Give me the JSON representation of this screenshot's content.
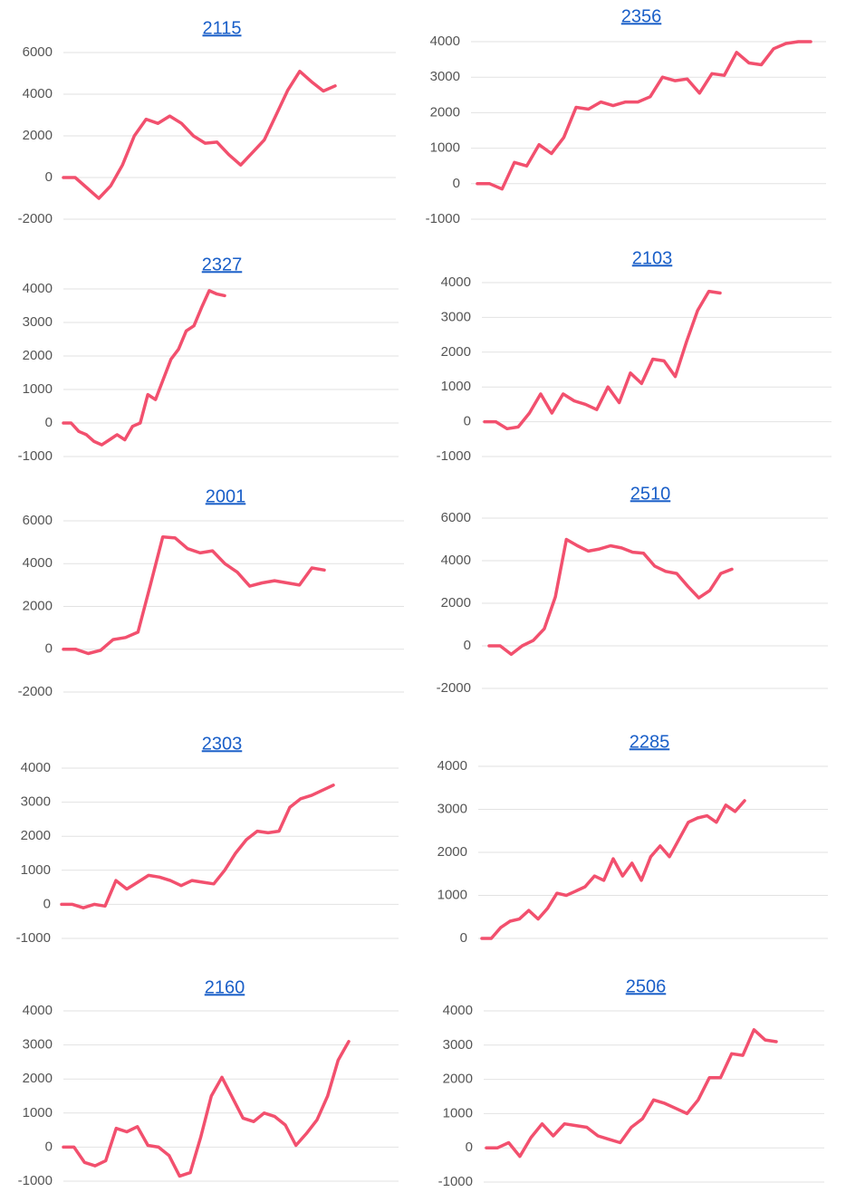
{
  "chart_data": [
    {
      "type": "line",
      "title": "2115",
      "color": "#f2506e",
      "grid": true,
      "ylim": [
        -2000,
        6000
      ],
      "yticks": [
        -2000,
        0,
        2000,
        4000,
        6000
      ],
      "values": [
        0,
        0,
        -500,
        -1000,
        -400,
        600,
        2000,
        2800,
        2600,
        2950,
        2600,
        2000,
        1650,
        1700,
        1100,
        600,
        1200,
        1800,
        3000,
        4200,
        5100,
        4600,
        4150,
        4400
      ]
    },
    {
      "type": "line",
      "title": "2356",
      "color": "#f2506e",
      "grid": true,
      "ylim": [
        -1000,
        4000
      ],
      "yticks": [
        -1000,
        0,
        1000,
        2000,
        3000,
        4000
      ],
      "values": [
        0,
        0,
        -150,
        600,
        500,
        1100,
        850,
        1300,
        2150,
        2100,
        2300,
        2200,
        2300,
        2300,
        2450,
        3000,
        2900,
        2950,
        2550,
        3100,
        3050,
        3700,
        3400,
        3350,
        3800,
        3950,
        4000,
        4000
      ]
    },
    {
      "type": "line",
      "title": "2327",
      "color": "#f2506e",
      "grid": true,
      "ylim": [
        -1000,
        4000
      ],
      "yticks": [
        -1000,
        0,
        1000,
        2000,
        3000,
        4000
      ],
      "values": [
        0,
        0,
        -250,
        -350,
        -550,
        -650,
        -500,
        -350,
        -500,
        -100,
        0,
        850,
        700,
        1300,
        1900,
        2200,
        2750,
        2900,
        3450,
        3950,
        3850,
        3800
      ]
    },
    {
      "type": "line",
      "title": "2103",
      "color": "#f2506e",
      "grid": true,
      "ylim": [
        -1000,
        4000
      ],
      "yticks": [
        -1000,
        0,
        1000,
        2000,
        3000,
        4000
      ],
      "values": [
        0,
        0,
        -200,
        -150,
        250,
        800,
        250,
        800,
        600,
        500,
        350,
        1000,
        550,
        1400,
        1100,
        1800,
        1750,
        1300,
        2300,
        3200,
        3750,
        3700
      ]
    },
    {
      "type": "line",
      "title": "2001",
      "color": "#f2506e",
      "grid": true,
      "ylim": [
        -2000,
        6000
      ],
      "yticks": [
        -2000,
        0,
        2000,
        4000,
        6000
      ],
      "values": [
        0,
        0,
        -200,
        -50,
        450,
        550,
        800,
        3000,
        5250,
        5200,
        4700,
        4500,
        4600,
        4000,
        3600,
        2950,
        3100,
        3200,
        3100,
        3000,
        3800,
        3700
      ]
    },
    {
      "type": "line",
      "title": "2510",
      "color": "#f2506e",
      "grid": true,
      "ylim": [
        -2000,
        6000
      ],
      "yticks": [
        -2000,
        0,
        2000,
        4000,
        6000
      ],
      "values": [
        0,
        0,
        -400,
        0,
        250,
        800,
        2300,
        5000,
        4700,
        4450,
        4550,
        4700,
        4600,
        4400,
        4350,
        3750,
        3500,
        3400,
        2800,
        2250,
        2600,
        3400,
        3600
      ]
    },
    {
      "type": "line",
      "title": "2303",
      "color": "#f2506e",
      "grid": true,
      "ylim": [
        -1000,
        4000
      ],
      "yticks": [
        -1000,
        0,
        1000,
        2000,
        3000,
        4000
      ],
      "values": [
        0,
        0,
        -100,
        0,
        -50,
        700,
        450,
        650,
        850,
        800,
        700,
        550,
        700,
        650,
        600,
        1000,
        1500,
        1900,
        2150,
        2100,
        2150,
        2850,
        3100,
        3200,
        3350,
        3500
      ]
    },
    {
      "type": "line",
      "title": "2285",
      "color": "#f2506e",
      "grid": true,
      "ylim": [
        0,
        4000
      ],
      "yticks": [
        0,
        1000,
        2000,
        3000,
        4000
      ],
      "values": [
        0,
        0,
        250,
        400,
        450,
        650,
        450,
        700,
        1050,
        1000,
        1100,
        1200,
        1450,
        1350,
        1850,
        1450,
        1750,
        1350,
        1900,
        2150,
        1900,
        2300,
        2700,
        2800,
        2850,
        2700,
        3100,
        2950,
        3200
      ]
    },
    {
      "type": "line",
      "title": "2160",
      "color": "#f2506e",
      "grid": true,
      "ylim": [
        -1000,
        4000
      ],
      "yticks": [
        -1000,
        0,
        1000,
        2000,
        3000,
        4000
      ],
      "values": [
        0,
        0,
        -450,
        -550,
        -400,
        550,
        450,
        600,
        50,
        0,
        -250,
        -850,
        -750,
        300,
        1500,
        2050,
        1450,
        850,
        750,
        1000,
        900,
        650,
        50,
        400,
        800,
        1500,
        2550,
        3100
      ]
    },
    {
      "type": "line",
      "title": "2506",
      "color": "#f2506e",
      "grid": true,
      "ylim": [
        -1000,
        4000
      ],
      "yticks": [
        -1000,
        0,
        1000,
        2000,
        3000,
        4000
      ],
      "values": [
        0,
        0,
        150,
        -250,
        300,
        700,
        350,
        700,
        650,
        600,
        350,
        250,
        150,
        600,
        850,
        1400,
        1300,
        1150,
        1000,
        1400,
        2050,
        2050,
        2750,
        2700,
        3450,
        3150,
        3100
      ]
    }
  ]
}
